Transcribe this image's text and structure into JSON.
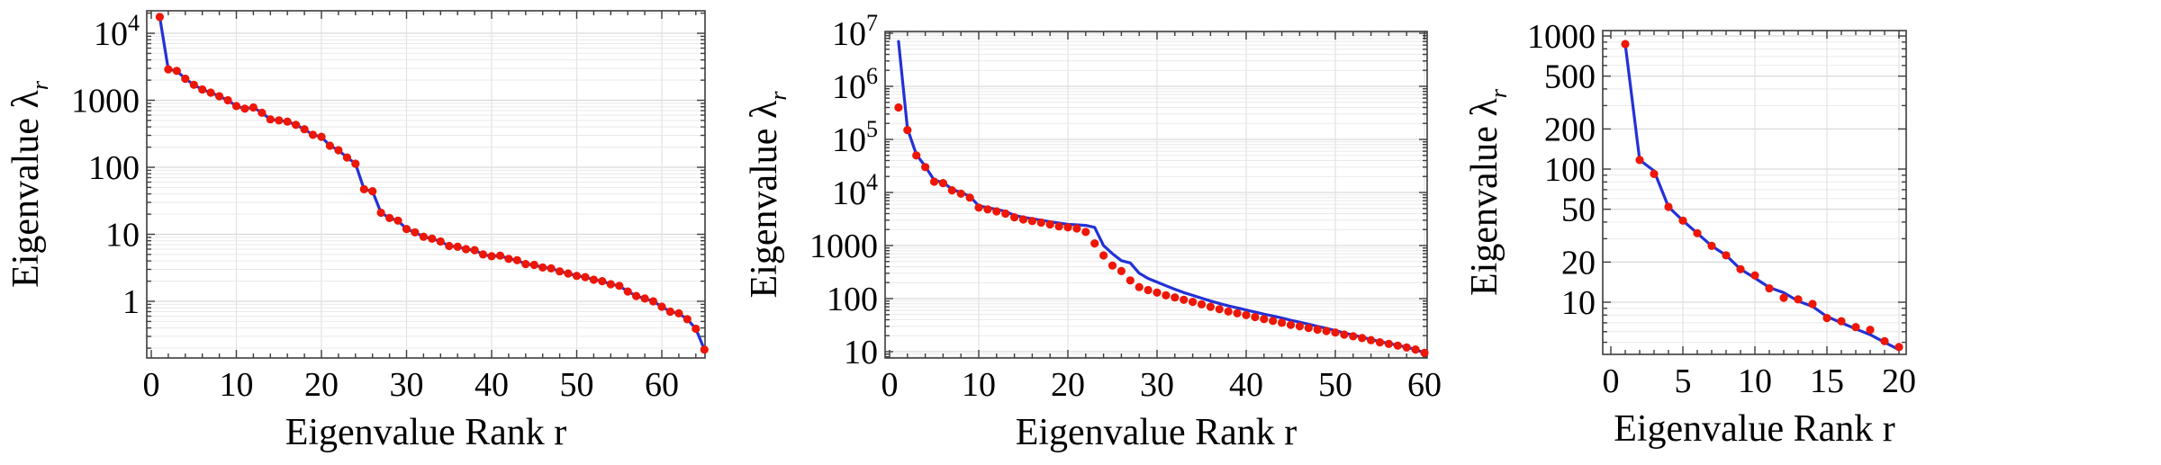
{
  "page": {
    "background": "#ffffff"
  },
  "chart_data": [
    {
      "id": "left-spectrum",
      "type": "line",
      "title": "",
      "xlabel": "Eigenvalue Rank r",
      "ylabel": "Eigenvalue λ_r",
      "grid": true,
      "legend": null,
      "x_axis": {
        "ticks": [
          0,
          10,
          20,
          30,
          40,
          50,
          60
        ],
        "minor_step": 2,
        "max_rank": 65,
        "xlim": [
          -0.5,
          65
        ]
      },
      "y_axis": {
        "scale": "log",
        "ylim": [
          0.14,
          22000
        ],
        "ticks": [
          {
            "value": 10000,
            "label": "10^4"
          },
          {
            "value": 1000,
            "label": "1000"
          },
          {
            "value": 100,
            "label": "100"
          },
          {
            "value": 10,
            "label": "10"
          },
          {
            "value": 1,
            "label": "1"
          }
        ]
      },
      "series": [
        {
          "name": "fit-line",
          "style": "line",
          "color": "#2331d6",
          "start_rank": 1,
          "values": [
            17500,
            2900,
            2750,
            2100,
            1700,
            1450,
            1300,
            1150,
            1000,
            820,
            750,
            780,
            650,
            520,
            500,
            480,
            430,
            370,
            305,
            285,
            210,
            180,
            140,
            113,
            47,
            44,
            21,
            17.5,
            16,
            12,
            10.7,
            9.2,
            8.6,
            7.8,
            6.7,
            6.5,
            6.0,
            5.8,
            5.0,
            4.7,
            4.8,
            4.3,
            4.1,
            3.6,
            3.5,
            3.2,
            3.1,
            2.8,
            2.6,
            2.4,
            2.3,
            2.1,
            2.0,
            1.8,
            1.7,
            1.4,
            1.2,
            1.1,
            1.0,
            0.83,
            0.7,
            0.66,
            0.54,
            0.39,
            0.19
          ]
        },
        {
          "name": "eigenvalue-points",
          "style": "points",
          "color": "#ee1605",
          "start_rank": 1,
          "values": [
            17500,
            2900,
            2750,
            2100,
            1700,
            1450,
            1300,
            1150,
            1000,
            820,
            750,
            780,
            650,
            520,
            500,
            480,
            430,
            370,
            305,
            285,
            210,
            180,
            140,
            113,
            47,
            44,
            21,
            17.5,
            16,
            12,
            10.7,
            9.2,
            8.6,
            7.8,
            6.7,
            6.5,
            6.0,
            5.8,
            5.0,
            4.7,
            4.8,
            4.3,
            4.1,
            3.6,
            3.5,
            3.2,
            3.1,
            2.8,
            2.6,
            2.4,
            2.3,
            2.1,
            2.0,
            1.8,
            1.7,
            1.4,
            1.2,
            1.1,
            1.0,
            0.83,
            0.7,
            0.66,
            0.54,
            0.39,
            0.19
          ]
        }
      ]
    },
    {
      "id": "middle-spectrum",
      "type": "line",
      "title": "",
      "xlabel": "Eigenvalue Rank r",
      "ylabel": "Eigenvalue λ_r",
      "grid": true,
      "legend": null,
      "x_axis": {
        "ticks": [
          0,
          10,
          20,
          30,
          40,
          50,
          60
        ],
        "minor_step": 2,
        "max_rank": 60,
        "xlim": [
          -0.5,
          61
        ]
      },
      "y_axis": {
        "scale": "log",
        "ylim": [
          7.6,
          11000000
        ],
        "ticks": [
          {
            "value": 10000000,
            "label": "10^7"
          },
          {
            "value": 1000000,
            "label": "10^6"
          },
          {
            "value": 100000,
            "label": "10^5"
          },
          {
            "value": 10000,
            "label": "10^4"
          },
          {
            "value": 1000,
            "label": "1000"
          },
          {
            "value": 100,
            "label": "100"
          },
          {
            "value": 10,
            "label": "10"
          }
        ]
      },
      "series": [
        {
          "name": "fit-line",
          "style": "line",
          "color": "#2331d6",
          "start_rank": 1,
          "values": [
            7000000,
            160000,
            52000,
            31000,
            17000,
            15500,
            11500,
            10000,
            8500,
            5600,
            5200,
            4800,
            4400,
            3700,
            3400,
            3200,
            3000,
            2800,
            2650,
            2500,
            2450,
            2400,
            2200,
            1000,
            700,
            520,
            470,
            300,
            240,
            205,
            175,
            150,
            130,
            115,
            102,
            90,
            81,
            73,
            67,
            61,
            56,
            51,
            47,
            43,
            39,
            36,
            33,
            30,
            27.5,
            25,
            22.5,
            20.5,
            18.8,
            17,
            15.5,
            14.3,
            13.2,
            12.1,
            11,
            9.5
          ]
        },
        {
          "name": "eigenvalue-points",
          "style": "points",
          "color": "#ee1605",
          "start_rank": 1,
          "values": [
            400000,
            150000,
            50000,
            30000,
            16000,
            15000,
            11000,
            9500,
            8000,
            5200,
            4800,
            4400,
            4000,
            3400,
            3100,
            2900,
            2700,
            2500,
            2300,
            2200,
            2100,
            1800,
            1100,
            650,
            420,
            330,
            220,
            165,
            145,
            130,
            115,
            105,
            95,
            87,
            78,
            70,
            63,
            57,
            53,
            49,
            45,
            41,
            38,
            35,
            32,
            30,
            28,
            26,
            24.5,
            23,
            21,
            19.5,
            18,
            16.5,
            15,
            14,
            13,
            12,
            11,
            9.5
          ]
        }
      ]
    },
    {
      "id": "right-spectrum",
      "type": "line",
      "title": "",
      "xlabel": "Eigenvalue Rank r",
      "ylabel": "Eigenvalue λ_r",
      "grid": true,
      "legend": null,
      "x_axis": {
        "ticks": [
          0,
          5,
          10,
          15,
          20
        ],
        "minor_step": 1,
        "max_rank": 20,
        "xlim": [
          -0.3,
          20.3
        ]
      },
      "y_axis": {
        "scale": "log",
        "ylim": [
          4.0,
          1150
        ],
        "ticks": [
          {
            "value": 1000,
            "label": "1000"
          },
          {
            "value": 500,
            "label": "500"
          },
          {
            "value": 200,
            "label": "200"
          },
          {
            "value": 100,
            "label": "100"
          },
          {
            "value": 50,
            "label": "50"
          },
          {
            "value": 20,
            "label": "20"
          },
          {
            "value": 10,
            "label": "10"
          }
        ]
      },
      "series": [
        {
          "name": "fit-line",
          "style": "line",
          "color": "#2331d6",
          "start_rank": 1,
          "values": [
            870,
            117,
            97,
            52,
            41,
            33,
            26.5,
            22.5,
            17.7,
            15.2,
            12.9,
            11.8,
            10.2,
            9.3,
            7.8,
            7.0,
            6.3,
            5.7,
            5.0,
            4.4
          ]
        },
        {
          "name": "eigenvalue-points",
          "style": "points",
          "color": "#ee1605",
          "start_rank": 1,
          "values": [
            870,
            117,
            92,
            52,
            41,
            33,
            26.5,
            22.5,
            17.7,
            15.9,
            12.7,
            10.8,
            10.5,
            9.7,
            7.6,
            7.2,
            6.5,
            6.2,
            5.1,
            4.6
          ]
        }
      ]
    }
  ]
}
